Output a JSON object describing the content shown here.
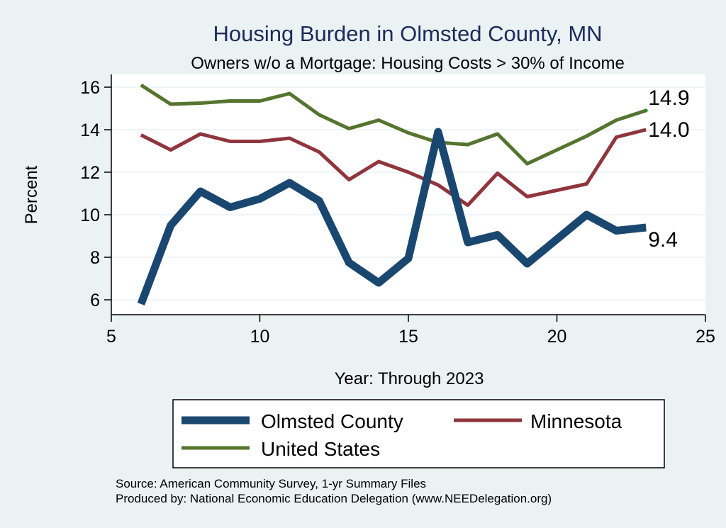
{
  "chart_data": {
    "type": "line",
    "title": "Housing Burden in Olmsted County, MN",
    "subtitle": "Owners w/o a Mortgage: Housing Costs > 30% of Income",
    "xlabel": "Year: Through 2023",
    "ylabel": "Percent",
    "xlim": [
      5,
      25
    ],
    "ylim": [
      5.3,
      16.6
    ],
    "xticks": [
      5,
      10,
      15,
      20,
      25
    ],
    "yticks": [
      6,
      8,
      10,
      12,
      14,
      16
    ],
    "grid": true,
    "legend_position": "bottom",
    "x": [
      6,
      7,
      8,
      9,
      10,
      11,
      12,
      13,
      14,
      15,
      16,
      17,
      18,
      19,
      20,
      21,
      22,
      23
    ],
    "series": [
      {
        "name": "Olmsted County",
        "color": "#1a476f",
        "values": [
          5.8,
          9.5,
          11.1,
          10.35,
          10.75,
          11.5,
          10.65,
          7.75,
          6.8,
          7.95,
          13.9,
          8.7,
          9.05,
          7.7,
          8.85,
          10.0,
          9.25,
          9.4
        ],
        "end_label": "9.4"
      },
      {
        "name": "Minnesota",
        "color": "#90353b",
        "values": [
          13.75,
          13.05,
          13.8,
          13.45,
          13.45,
          13.6,
          12.95,
          11.65,
          12.5,
          12.0,
          11.4,
          10.45,
          11.95,
          10.85,
          11.15,
          11.45,
          13.65,
          14.0
        ],
        "end_label": "14.0"
      },
      {
        "name": "United States",
        "color": "#55752f",
        "values": [
          16.1,
          15.2,
          15.25,
          15.35,
          15.35,
          15.7,
          14.7,
          14.05,
          14.45,
          13.85,
          13.4,
          13.3,
          13.8,
          12.4,
          13.05,
          13.7,
          14.45,
          14.9
        ],
        "end_label": "14.9"
      }
    ],
    "notes": [
      "Source: American Community Survey, 1-yr Summary Files",
      "Produced by: National Economic Education Delegation (www.NEEDelegation.org)"
    ]
  }
}
